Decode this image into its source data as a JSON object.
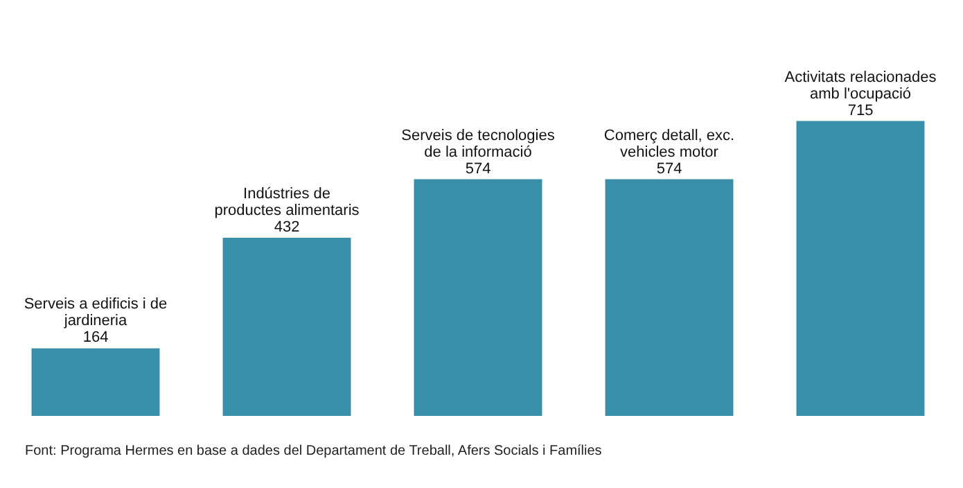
{
  "chart_data": {
    "type": "bar",
    "categories": [
      "Serveis a edificis i de jardineria",
      "Indústries de productes alimentaris",
      "Serveis de tecnologies de la informació",
      "Comerç detall, exc. vehicles motor",
      "Activitats relacionades amb l'ocupació"
    ],
    "values": [
      164,
      432,
      574,
      574,
      715
    ],
    "color": "#3a8fa8",
    "data_labels": true,
    "annotations": [
      "Font: Programa Hermes en base a dades del Departament de Treball, Afers Socials i Famílies"
    ]
  }
}
